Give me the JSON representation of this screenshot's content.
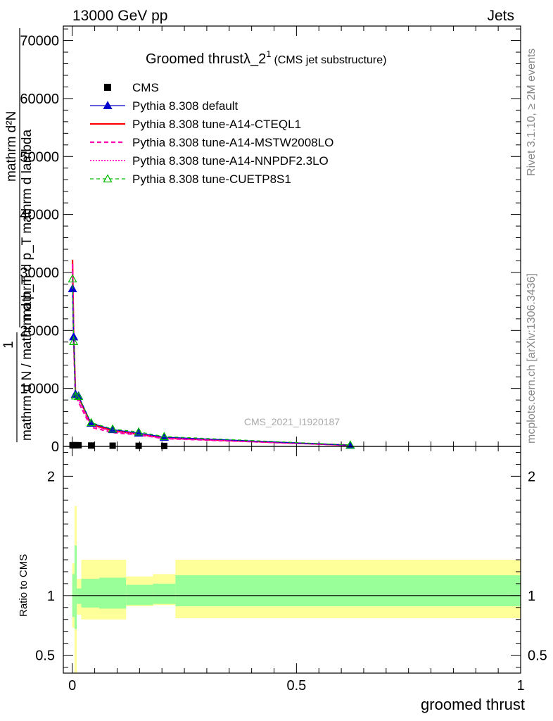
{
  "header": {
    "energy_label": "13000 GeV pp",
    "process_label": "Jets"
  },
  "side_labels": {
    "rivet": "Rivet 3.1.10, ≥ 2M events",
    "mcplots": "mcplots.cern.ch [arXiv:1306.3436]"
  },
  "watermark": "CMS_2021_I1920187",
  "chart_data": [
    {
      "type": "line",
      "title": "Groomed thrustλ_2¹",
      "title_main": "Groomed thrustλ_2",
      "title_sup": "1",
      "subtitle": "(CMS jet substructure)",
      "ylabel_lines": [
        "mathrm d²N",
        "mathrm d p_T mathrm d lambda",
        "1",
        "mathrm d N / mathrm d p_T"
      ],
      "xlim": [
        -0.02,
        1.0
      ],
      "ylim": [
        0,
        72500
      ],
      "yticks": [
        0,
        10000,
        20000,
        30000,
        40000,
        50000,
        60000,
        70000
      ],
      "ytick_labels": [
        "0",
        "10000",
        "20000",
        "30000",
        "40000",
        "50000",
        "60000",
        "70000"
      ],
      "grid": false,
      "legend_position": "top-left",
      "legend": [
        "CMS",
        "Pythia 8.308 default",
        "Pythia 8.308 tune-A14-CTEQL1",
        "Pythia 8.308 tune-A14-MSTW2008LO",
        "Pythia 8.308 tune-A14-NNPDF2.3LO",
        "Pythia 8.308 tune-CUETP8S1"
      ],
      "series": [
        {
          "name": "CMS",
          "color": "#000000",
          "x": [
            0.0005,
            0.003,
            0.007,
            0.014,
            0.042,
            0.09,
            0.148,
            0.205
          ],
          "y": [
            200,
            200,
            200,
            200,
            150,
            120,
            100,
            80
          ]
        },
        {
          "name": "Pythia 8.308 default",
          "color": "#0000cc",
          "x": [
            0.0005,
            0.003,
            0.007,
            0.014,
            0.042,
            0.09,
            0.148,
            0.205,
            0.62
          ],
          "y": [
            27200,
            18900,
            9000,
            8700,
            4000,
            2900,
            2300,
            1600,
            200
          ]
        },
        {
          "name": "Pythia 8.308 tune-A14-CTEQL1",
          "color": "#ff0000",
          "x": [
            0.0005,
            0.003,
            0.007,
            0.014,
            0.042,
            0.09,
            0.148,
            0.205,
            0.62
          ],
          "y": [
            32200,
            19500,
            9500,
            8500,
            3800,
            2700,
            2100,
            1450,
            200
          ]
        },
        {
          "name": "Pythia 8.308 tune-A14-MSTW2008LO",
          "color": "#ff00aa",
          "x": [
            0.0005,
            0.003,
            0.007,
            0.014,
            0.042,
            0.09,
            0.148,
            0.205,
            0.62
          ],
          "y": [
            31500,
            18000,
            9200,
            7600,
            3300,
            2400,
            2000,
            1350,
            200
          ]
        },
        {
          "name": "Pythia 8.308 tune-A14-NNPDF2.3LO",
          "color": "#ff00cc",
          "x": [
            0.0005,
            0.003,
            0.007,
            0.014,
            0.042,
            0.09,
            0.148,
            0.205,
            0.62
          ],
          "y": [
            30800,
            18800,
            9100,
            8000,
            3600,
            2600,
            2100,
            1400,
            200
          ]
        },
        {
          "name": "Pythia 8.308 tune-CUETP8S1",
          "color": "#00bb00",
          "x": [
            0.0005,
            0.003,
            0.007,
            0.014,
            0.042,
            0.09,
            0.148,
            0.205,
            0.62
          ],
          "y": [
            28900,
            18100,
            8700,
            8600,
            4100,
            3000,
            2500,
            1700,
            250
          ]
        }
      ]
    },
    {
      "type": "area",
      "ylabel": "Ratio to CMS",
      "xlabel": "groomed thrust",
      "xlim": [
        -0.02,
        1.0
      ],
      "ylim": [
        0.35,
        2.25
      ],
      "xticks": [
        0,
        0.5,
        1
      ],
      "xtick_labels": [
        "0",
        "0.5",
        "1"
      ],
      "yticks": [
        0.5,
        1,
        2
      ],
      "ytick_labels": [
        "0.5",
        "1",
        "2"
      ],
      "reference_line": 1,
      "bins": [
        0,
        0.005,
        0.01,
        0.02,
        0.06,
        0.12,
        0.18,
        0.23,
        1.0
      ],
      "band_inner": [
        [
          0.82,
          1.18
        ],
        [
          0.72,
          1.42
        ],
        [
          0.93,
          1.06
        ],
        [
          0.9,
          1.14
        ],
        [
          0.89,
          1.15
        ],
        [
          0.92,
          1.09
        ],
        [
          0.93,
          1.1
        ],
        [
          0.91,
          1.17
        ]
      ],
      "band_outer": [
        [
          0.73,
          1.27
        ],
        [
          0.35,
          1.75
        ],
        [
          0.84,
          1.14
        ],
        [
          0.8,
          1.3
        ],
        [
          0.8,
          1.3
        ],
        [
          0.91,
          1.16
        ],
        [
          0.92,
          1.18
        ],
        [
          0.81,
          1.3
        ]
      ],
      "inner_color": "#99ff99",
      "outer_color": "#ffff99"
    }
  ]
}
